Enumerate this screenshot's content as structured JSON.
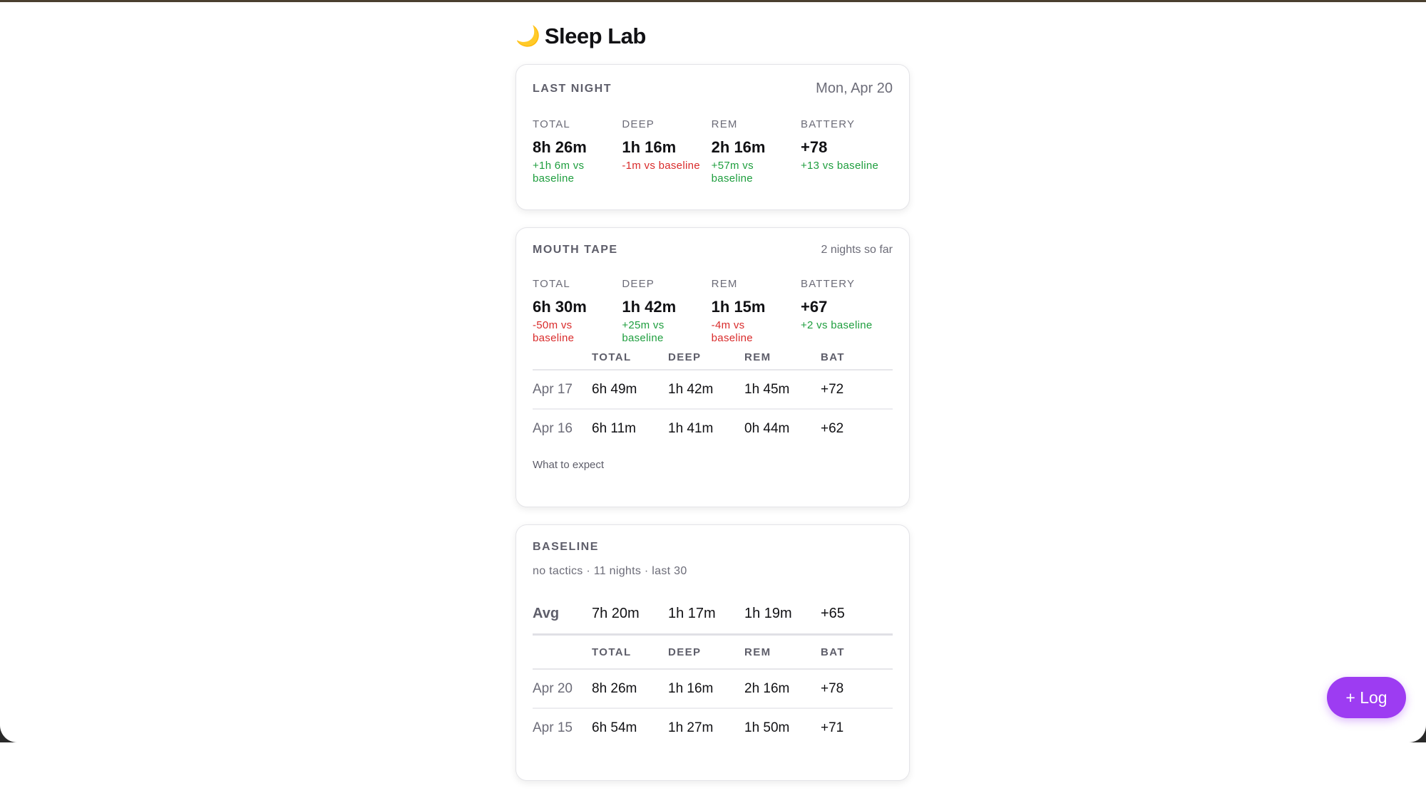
{
  "app": {
    "icon": "moon-icon",
    "title": "Sleep Lab"
  },
  "colors": {
    "good": "#1e9e3e",
    "bad": "#d92b2b",
    "accent": "#9d3cf2"
  },
  "last_night": {
    "title": "LAST NIGHT",
    "date": "Mon, Apr 20",
    "stats": [
      {
        "label": "TOTAL",
        "value": "8h 26m",
        "delta": "+1h 6m vs baseline"
      },
      {
        "label": "DEEP",
        "value": "1h 16m",
        "delta": "-1m vs baseline"
      },
      {
        "label": "REM",
        "value": "2h 16m",
        "delta": "+57m vs baseline"
      },
      {
        "label": "BATTERY",
        "value": "+78",
        "delta": "+13 vs baseline"
      }
    ]
  },
  "mouth_tape": {
    "title": "MOUTH TAPE",
    "meta": "2 nights so far",
    "stats": [
      {
        "label": "TOTAL",
        "value": "6h 30m",
        "delta": "-50m vs baseline"
      },
      {
        "label": "DEEP",
        "value": "1h 42m",
        "delta": "+25m vs baseline"
      },
      {
        "label": "REM",
        "value": "1h 15m",
        "delta": "-4m vs baseline"
      },
      {
        "label": "BATTERY",
        "value": "+67",
        "delta": "+2 vs baseline"
      }
    ],
    "columns": [
      "TOTAL",
      "DEEP",
      "REM",
      "BAT"
    ],
    "rows": [
      {
        "date": "Apr 17",
        "total": "6h 49m",
        "deep": "1h 42m",
        "rem": "1h 45m",
        "bat": "+72"
      },
      {
        "date": "Apr 16",
        "total": "6h 11m",
        "deep": "1h 41m",
        "rem": "0h 44m",
        "bat": "+62"
      }
    ],
    "footer_link": "What to expect"
  },
  "baseline": {
    "title": "BASELINE",
    "subtitle": "no tactics · 11 nights · last 30",
    "avg": {
      "label": "Avg",
      "total": "7h 20m",
      "deep": "1h 17m",
      "rem": "1h 19m",
      "bat": "+65"
    },
    "columns": [
      "TOTAL",
      "DEEP",
      "REM",
      "BAT"
    ],
    "rows": [
      {
        "date": "Apr 20",
        "total": "8h 26m",
        "deep": "1h 16m",
        "rem": "2h 16m",
        "bat": "+78"
      },
      {
        "date": "Apr 15",
        "total": "6h 54m",
        "deep": "1h 27m",
        "rem": "1h 50m",
        "bat": "+71"
      }
    ]
  },
  "fab": {
    "label": "+ Log"
  }
}
